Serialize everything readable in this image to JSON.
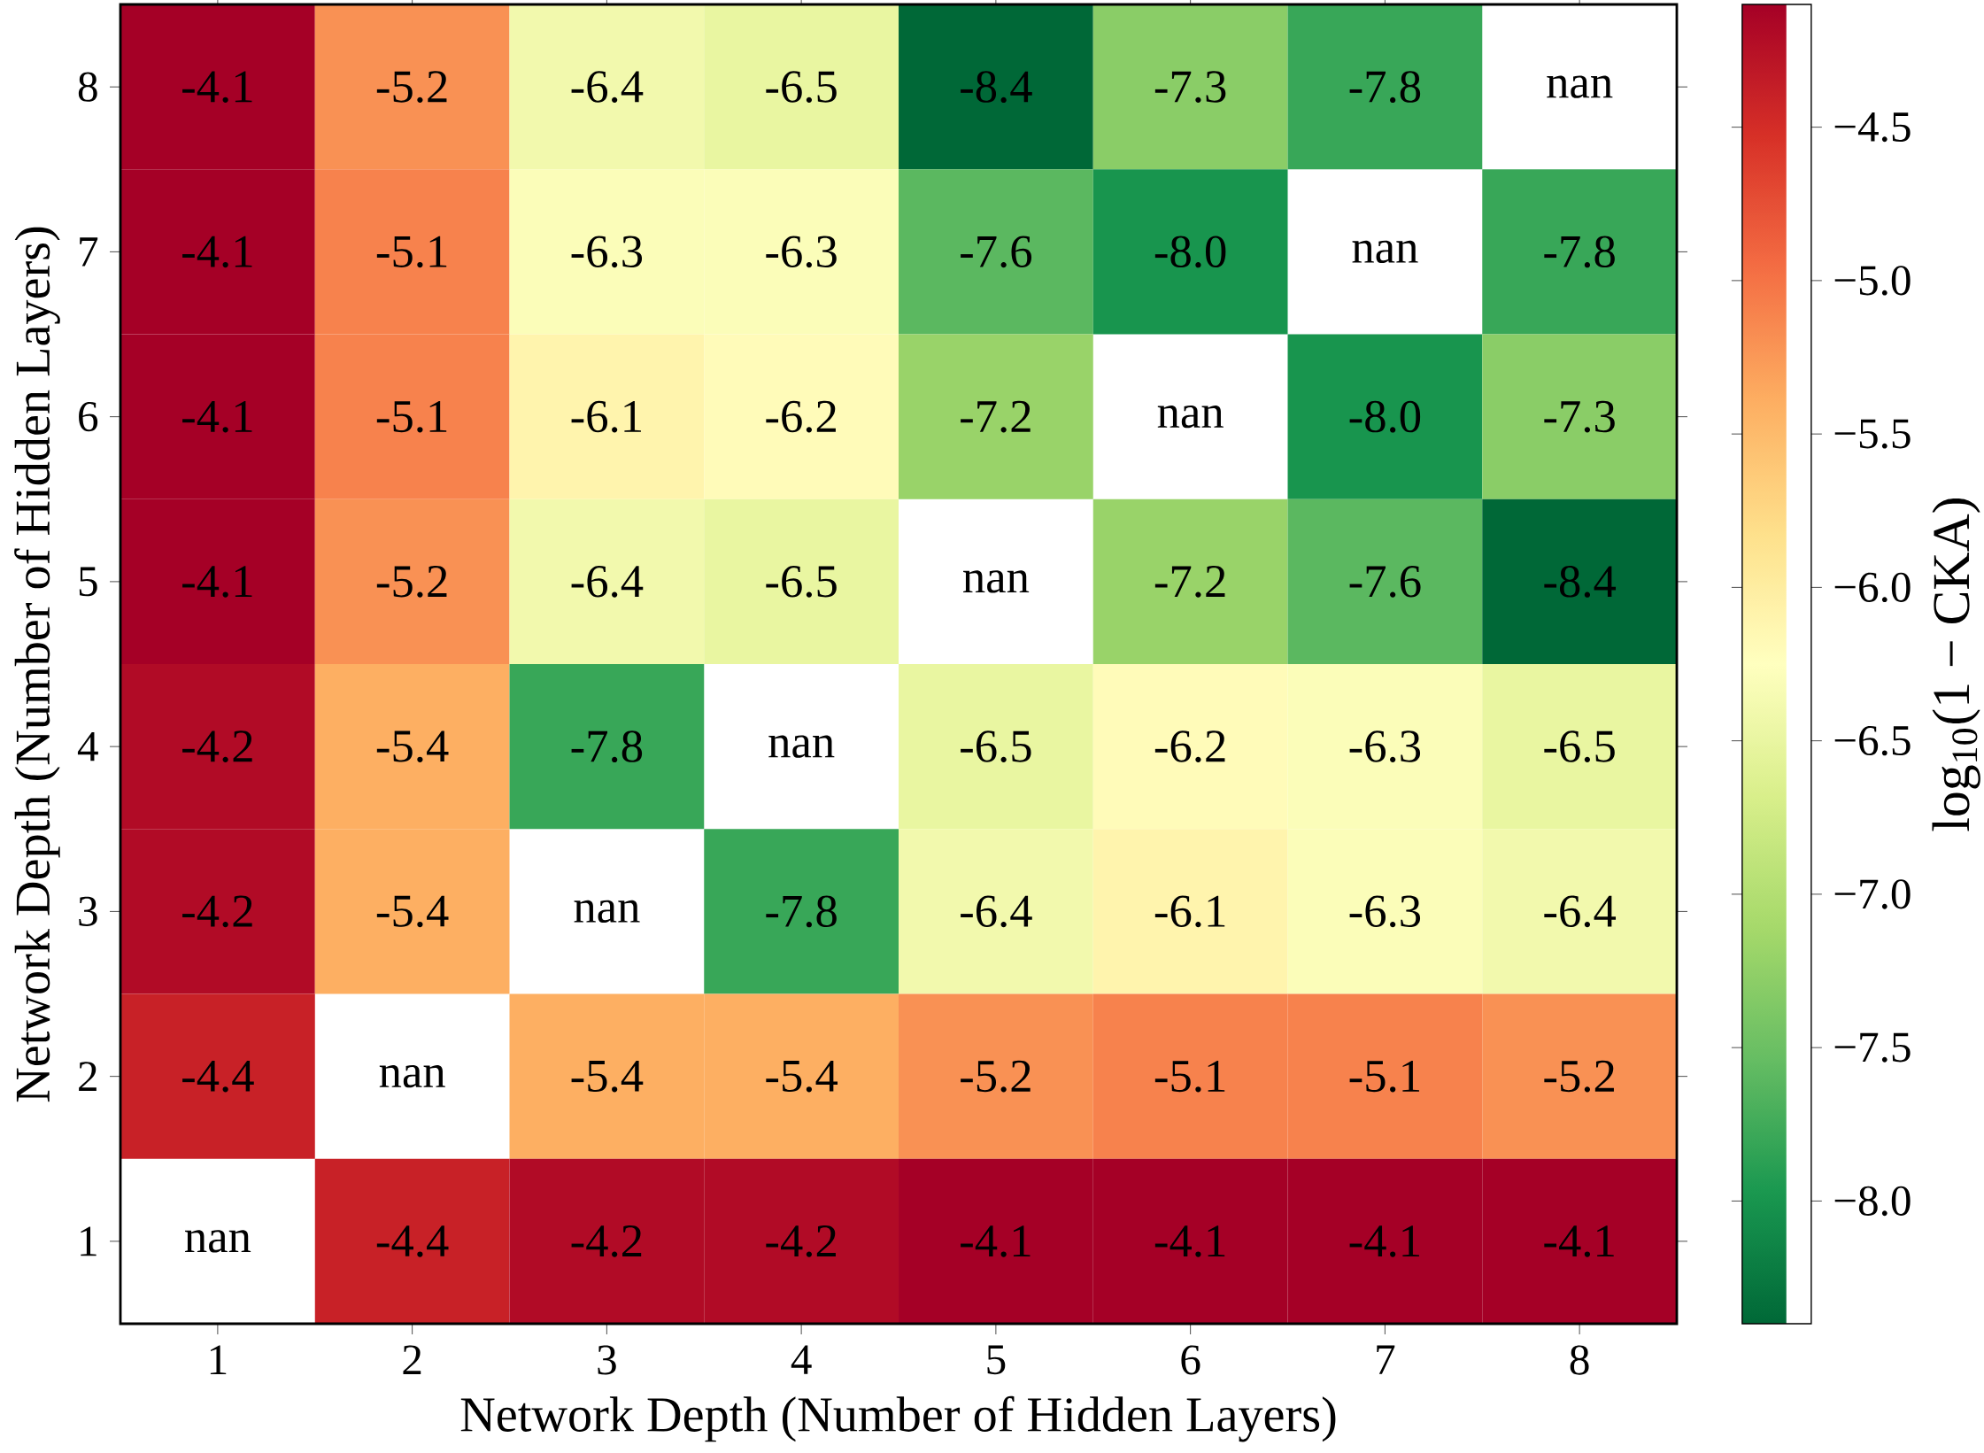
{
  "chart_data": {
    "type": "heatmap",
    "xlabel": "Network Depth (Number of Hidden Layers)",
    "ylabel": "Network Depth (Number of Hidden Layers)",
    "clabel": "log$_{10}$(1 − CKA)",
    "categories": [
      "1",
      "2",
      "3",
      "4",
      "5",
      "6",
      "7",
      "8"
    ],
    "y_categories": [
      "8",
      "7",
      "6",
      "5",
      "4",
      "3",
      "2",
      "1"
    ],
    "cells": [
      [
        -4.1,
        -5.2,
        -6.4,
        -6.5,
        -8.4,
        -7.3,
        -7.8,
        null
      ],
      [
        -4.1,
        -5.1,
        -6.3,
        -6.3,
        -7.6,
        -8.0,
        null,
        -7.8
      ],
      [
        -4.1,
        -5.1,
        -6.1,
        -6.2,
        -7.2,
        null,
        -8.0,
        -7.3
      ],
      [
        -4.1,
        -5.2,
        -6.4,
        -6.5,
        null,
        -7.2,
        -7.6,
        -8.4
      ],
      [
        -4.2,
        -5.4,
        -7.8,
        null,
        -6.5,
        -6.2,
        -6.3,
        -6.5
      ],
      [
        -4.2,
        -5.4,
        null,
        -7.8,
        -6.4,
        -6.1,
        -6.3,
        -6.4
      ],
      [
        -4.4,
        null,
        -5.4,
        -5.4,
        -5.2,
        -5.1,
        -5.1,
        -5.2
      ],
      [
        null,
        -4.4,
        -4.2,
        -4.2,
        -4.1,
        -4.1,
        -4.1,
        -4.1
      ]
    ],
    "cell_labels": [
      [
        "-4.1",
        "-5.2",
        "-6.4",
        "-6.5",
        "-8.4",
        "-7.3",
        "-7.8",
        "nan"
      ],
      [
        "-4.1",
        "-5.1",
        "-6.3",
        "-6.3",
        "-7.6",
        "-8.0",
        "nan",
        "-7.8"
      ],
      [
        "-4.1",
        "-5.1",
        "-6.1",
        "-6.2",
        "-7.2",
        "nan",
        "-8.0",
        "-7.3"
      ],
      [
        "-4.1",
        "-5.2",
        "-6.4",
        "-6.5",
        "nan",
        "-7.2",
        "-7.6",
        "-8.4"
      ],
      [
        "-4.2",
        "-5.4",
        "-7.8",
        "nan",
        "-6.5",
        "-6.2",
        "-6.3",
        "-6.5"
      ],
      [
        "-4.2",
        "-5.4",
        "nan",
        "-7.8",
        "-6.4",
        "-6.1",
        "-6.3",
        "-6.4"
      ],
      [
        "-4.4",
        "nan",
        "-5.4",
        "-5.4",
        "-5.2",
        "-5.1",
        "-5.1",
        "-5.2"
      ],
      [
        "nan",
        "-4.4",
        "-4.2",
        "-4.2",
        "-4.1",
        "-4.1",
        "-4.1",
        "-4.1"
      ]
    ],
    "clim": [
      -8.4,
      -4.1
    ],
    "cticks": [
      {
        "value": -8.0,
        "label": "−8.0"
      },
      {
        "value": -7.5,
        "label": "−7.5"
      },
      {
        "value": -7.0,
        "label": "−7.0"
      },
      {
        "value": -6.5,
        "label": "−6.5"
      },
      {
        "value": -6.0,
        "label": "−6.0"
      },
      {
        "value": -5.5,
        "label": "−5.5"
      },
      {
        "value": -5.0,
        "label": "−5.0"
      },
      {
        "value": -4.5,
        "label": "−4.5"
      }
    ]
  }
}
